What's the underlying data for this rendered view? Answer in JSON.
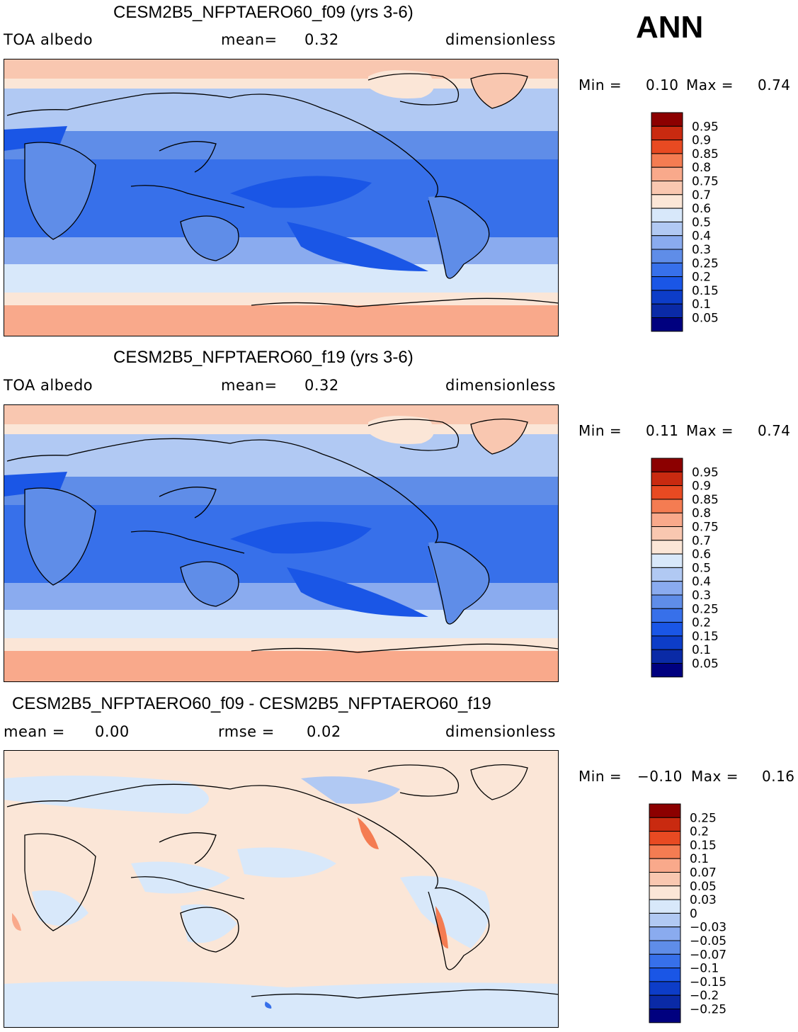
{
  "season_label": "ANN",
  "colors": {
    "coast": "#000000",
    "abs_scale": [
      "#00007f",
      "#0a2aa6",
      "#0d3dc8",
      "#1a56e6",
      "#3770ea",
      "#5f8de8",
      "#8aabef",
      "#b1c9f3",
      "#d8e8fa",
      "#fbe6d7",
      "#f9c7b0",
      "#f9a98b",
      "#f47c52",
      "#e84a22",
      "#c92a10",
      "#8c0000"
    ],
    "diff_scale": [
      "#00007f",
      "#0a2aa6",
      "#0d3dc8",
      "#1a56e6",
      "#3770ea",
      "#5f8de8",
      "#8aabef",
      "#b1c9f3",
      "#d8e8fa",
      "#fbe6d7",
      "#f9c7b0",
      "#f9a98b",
      "#f47c52",
      "#e84a22",
      "#c92a10",
      "#8c0000"
    ]
  },
  "panels": [
    {
      "title": "CESM2B5_NFPTAERO60_f09 (yrs 3-6)",
      "variable": "TOA albedo",
      "stat_label": "mean=",
      "stat_value": "0.32",
      "units": "dimensionless",
      "min_label": "Min =",
      "min_value": "0.10",
      "max_label": "Max =",
      "max_value": "0.74"
    },
    {
      "title": "CESM2B5_NFPTAERO60_f19 (yrs 3-6)",
      "variable": "TOA albedo",
      "stat_label": "mean=",
      "stat_value": "0.32",
      "units": "dimensionless",
      "min_label": "Min =",
      "min_value": "0.11",
      "max_label": "Max =",
      "max_value": "0.74"
    },
    {
      "title": "CESM2B5_NFPTAERO60_f09 - CESM2B5_NFPTAERO60_f19",
      "mean_label": "mean =",
      "mean_value": "0.00",
      "rmse_label": "rmse =",
      "rmse_value": "0.02",
      "units": "dimensionless",
      "min_label": "Min =",
      "min_value": "−0.10",
      "max_label": "Max =",
      "max_value": "0.16"
    }
  ],
  "chart_data": [
    {
      "type": "heatmap",
      "title": "CESM2B5_NFPTAERO60_f09 (yrs 3-6)",
      "field": "TOA albedo",
      "mean": 0.32,
      "min": 0.1,
      "max": 0.74,
      "units": "dimensionless",
      "colorbar_levels": [
        "0.95",
        "0.9",
        "0.85",
        "0.8",
        "0.75",
        "0.7",
        "0.6",
        "0.5",
        "0.4",
        "0.3",
        "0.25",
        "0.2",
        "0.15",
        "0.1",
        "0.05"
      ]
    },
    {
      "type": "heatmap",
      "title": "CESM2B5_NFPTAERO60_f19 (yrs 3-6)",
      "field": "TOA albedo",
      "mean": 0.32,
      "min": 0.11,
      "max": 0.74,
      "units": "dimensionless",
      "colorbar_levels": [
        "0.95",
        "0.9",
        "0.85",
        "0.8",
        "0.75",
        "0.7",
        "0.6",
        "0.5",
        "0.4",
        "0.3",
        "0.25",
        "0.2",
        "0.15",
        "0.1",
        "0.05"
      ]
    },
    {
      "type": "heatmap",
      "title": "CESM2B5_NFPTAERO60_f09 - CESM2B5_NFPTAERO60_f19",
      "mean": 0.0,
      "rmse": 0.02,
      "min": -0.1,
      "max": 0.16,
      "units": "dimensionless",
      "colorbar_levels": [
        "0.25",
        "0.2",
        "0.15",
        "0.1",
        "0.07",
        "0.05",
        "0.03",
        "0",
        "−0.03",
        "−0.05",
        "−0.07",
        "−0.1",
        "−0.15",
        "−0.2",
        "−0.25"
      ]
    }
  ]
}
